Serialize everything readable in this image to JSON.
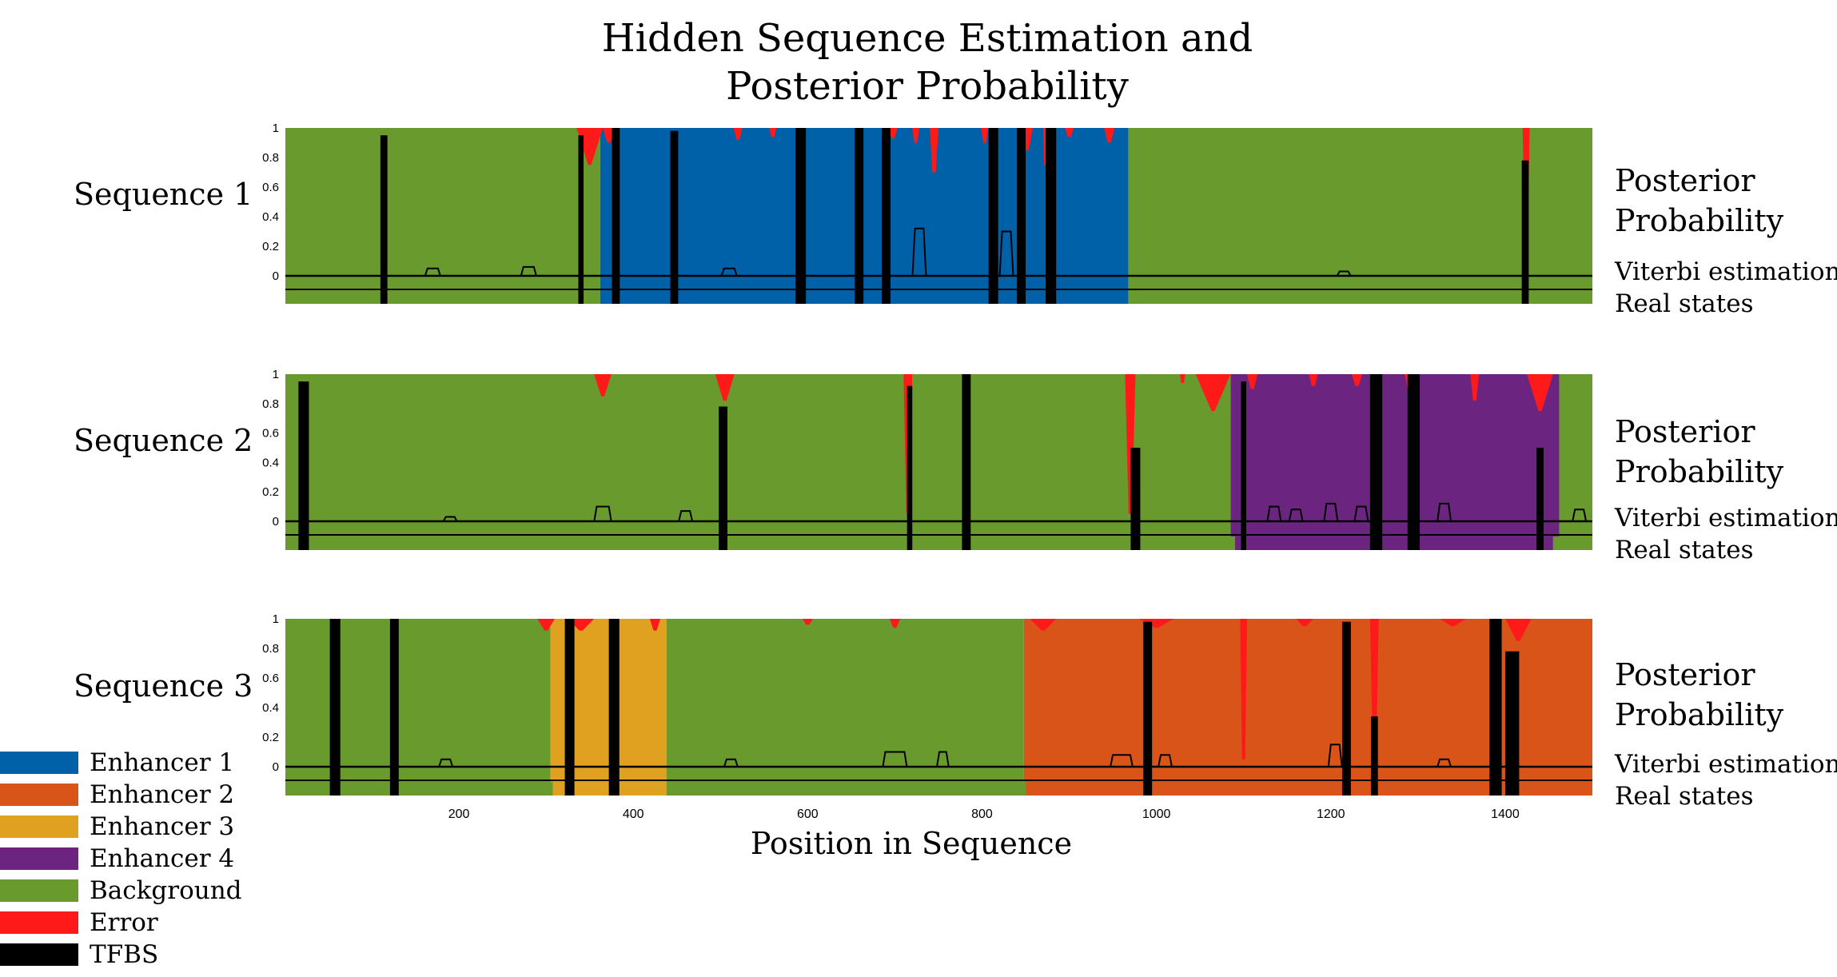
{
  "chart_data": {
    "type": "area",
    "title_line1": "Hidden Sequence Estimation and",
    "title_line2": "Posterior Probability",
    "xlabel": "Position in Sequence",
    "xlim": [
      1,
      1500
    ],
    "ylim": [
      0,
      1
    ],
    "x_ticks": [
      200,
      400,
      600,
      800,
      1000,
      1200,
      1400
    ],
    "y_ticks": [
      "0",
      "0.2",
      "0.4",
      "0.6",
      "0.8",
      "1"
    ],
    "side_labels": {
      "posterior_line1": "Posterior",
      "posterior_line2": "Probability",
      "viterbi": "Viterbi estimation",
      "real": "Real states"
    },
    "colors": {
      "enhancer1": "#0060a8",
      "enhancer2": "#d95419",
      "enhancer3": "#e0a020",
      "enhancer4": "#6b2580",
      "background": "#689a2d",
      "error": "#ff1a1a",
      "tfbs": "#000000"
    },
    "legend": [
      {
        "label": "Enhancer 1",
        "color": "#0060a8"
      },
      {
        "label": "Enhancer 2",
        "color": "#d95419"
      },
      {
        "label": "Enhancer 3",
        "color": "#e0a020"
      },
      {
        "label": "Enhancer 4",
        "color": "#6b2580"
      },
      {
        "label": "Background",
        "color": "#689a2d"
      },
      {
        "label": "Error",
        "color": "#ff1a1a"
      },
      {
        "label": "TFBS",
        "color": "#000000"
      }
    ],
    "sequences": [
      {
        "name": "Sequence 1",
        "posterior_regions": [
          {
            "start": 1,
            "end": 362,
            "state": "background"
          },
          {
            "start": 362,
            "end": 968,
            "state": "enhancer1"
          },
          {
            "start": 968,
            "end": 1500,
            "state": "background"
          }
        ],
        "error_dips": [
          {
            "x": 350,
            "w": 30,
            "depth": 0.25
          },
          {
            "x": 372,
            "w": 14,
            "depth": 0.1
          },
          {
            "x": 520,
            "w": 10,
            "depth": 0.08
          },
          {
            "x": 560,
            "w": 8,
            "depth": 0.06
          },
          {
            "x": 698,
            "w": 10,
            "depth": 0.07
          },
          {
            "x": 724,
            "w": 8,
            "depth": 0.1
          },
          {
            "x": 745,
            "w": 10,
            "depth": 0.3
          },
          {
            "x": 803,
            "w": 8,
            "depth": 0.1
          },
          {
            "x": 852,
            "w": 12,
            "depth": 0.15
          },
          {
            "x": 873,
            "w": 6,
            "depth": 0.25
          },
          {
            "x": 900,
            "w": 10,
            "depth": 0.06
          },
          {
            "x": 946,
            "w": 12,
            "depth": 0.1
          },
          {
            "x": 1424,
            "w": 8,
            "depth": 0.8
          }
        ],
        "tfbs": [
          {
            "x": 114,
            "w": 8,
            "h": 0.95
          },
          {
            "x": 340,
            "w": 6,
            "h": 0.95
          },
          {
            "x": 380,
            "w": 9,
            "h": 1.0
          },
          {
            "x": 447,
            "w": 9,
            "h": 0.98
          },
          {
            "x": 592,
            "w": 12,
            "h": 1.0
          },
          {
            "x": 659,
            "w": 10,
            "h": 1.0
          },
          {
            "x": 690,
            "w": 10,
            "h": 1.0
          },
          {
            "x": 813,
            "w": 11,
            "h": 1.0
          },
          {
            "x": 845,
            "w": 10,
            "h": 1.0
          },
          {
            "x": 879,
            "w": 12,
            "h": 1.0
          },
          {
            "x": 1423,
            "w": 8,
            "h": 0.78
          }
        ],
        "tfbs_bumps": [
          {
            "x": 170,
            "w": 12,
            "h": 0.05
          },
          {
            "x": 280,
            "w": 12,
            "h": 0.06
          },
          {
            "x": 510,
            "w": 12,
            "h": 0.05
          },
          {
            "x": 728,
            "w": 10,
            "h": 0.32
          },
          {
            "x": 828,
            "w": 10,
            "h": 0.3
          },
          {
            "x": 1215,
            "w": 10,
            "h": 0.03
          }
        ],
        "real_states": [
          {
            "start": 1,
            "end": 362,
            "state": "background"
          },
          {
            "start": 362,
            "end": 968,
            "state": "enhancer1"
          },
          {
            "start": 968,
            "end": 1500,
            "state": "background"
          }
        ]
      },
      {
        "name": "Sequence 2",
        "posterior_regions": [
          {
            "start": 1,
            "end": 1085,
            "state": "background"
          },
          {
            "start": 1085,
            "end": 1462,
            "state": "enhancer4"
          },
          {
            "start": 1462,
            "end": 1500,
            "state": "background"
          }
        ],
        "error_dips": [
          {
            "x": 365,
            "w": 20,
            "depth": 0.15
          },
          {
            "x": 505,
            "w": 22,
            "depth": 0.18
          },
          {
            "x": 715,
            "w": 10,
            "depth": 0.95
          },
          {
            "x": 970,
            "w": 12,
            "depth": 0.95
          },
          {
            "x": 1030,
            "w": 6,
            "depth": 0.06
          },
          {
            "x": 1065,
            "w": 40,
            "depth": 0.25
          },
          {
            "x": 1110,
            "w": 12,
            "depth": 0.1
          },
          {
            "x": 1180,
            "w": 10,
            "depth": 0.08
          },
          {
            "x": 1230,
            "w": 12,
            "depth": 0.08
          },
          {
            "x": 1290,
            "w": 10,
            "depth": 0.1
          },
          {
            "x": 1365,
            "w": 10,
            "depth": 0.18
          },
          {
            "x": 1440,
            "w": 30,
            "depth": 0.25
          }
        ],
        "tfbs": [
          {
            "x": 22,
            "w": 12,
            "h": 0.95
          },
          {
            "x": 503,
            "w": 10,
            "h": 0.78
          },
          {
            "x": 717,
            "w": 6,
            "h": 0.92
          },
          {
            "x": 782,
            "w": 10,
            "h": 1.0
          },
          {
            "x": 976,
            "w": 11,
            "h": 0.5
          },
          {
            "x": 1100,
            "w": 6,
            "h": 0.95
          },
          {
            "x": 1252,
            "w": 14,
            "h": 1.0
          },
          {
            "x": 1295,
            "w": 14,
            "h": 1.0
          },
          {
            "x": 1440,
            "w": 8,
            "h": 0.5
          }
        ],
        "tfbs_bumps": [
          {
            "x": 190,
            "w": 10,
            "h": 0.03
          },
          {
            "x": 365,
            "w": 14,
            "h": 0.1
          },
          {
            "x": 460,
            "w": 10,
            "h": 0.07
          },
          {
            "x": 1135,
            "w": 10,
            "h": 0.1
          },
          {
            "x": 1160,
            "w": 10,
            "h": 0.08
          },
          {
            "x": 1200,
            "w": 10,
            "h": 0.12
          },
          {
            "x": 1235,
            "w": 10,
            "h": 0.1
          },
          {
            "x": 1330,
            "w": 10,
            "h": 0.12
          },
          {
            "x": 1485,
            "w": 10,
            "h": 0.08
          }
        ],
        "real_states": [
          {
            "start": 1,
            "end": 1090,
            "state": "background"
          },
          {
            "start": 1090,
            "end": 1455,
            "state": "enhancer4"
          },
          {
            "start": 1455,
            "end": 1500,
            "state": "background"
          }
        ]
      },
      {
        "name": "Sequence 3",
        "posterior_regions": [
          {
            "start": 1,
            "end": 305,
            "state": "background"
          },
          {
            "start": 305,
            "end": 438,
            "state": "enhancer3"
          },
          {
            "start": 438,
            "end": 848,
            "state": "background"
          },
          {
            "start": 848,
            "end": 1500,
            "state": "enhancer2"
          }
        ],
        "error_dips": [
          {
            "x": 300,
            "w": 20,
            "depth": 0.08
          },
          {
            "x": 340,
            "w": 30,
            "depth": 0.08
          },
          {
            "x": 425,
            "w": 12,
            "depth": 0.08
          },
          {
            "x": 600,
            "w": 12,
            "depth": 0.04
          },
          {
            "x": 700,
            "w": 12,
            "depth": 0.06
          },
          {
            "x": 870,
            "w": 30,
            "depth": 0.08
          },
          {
            "x": 1000,
            "w": 40,
            "depth": 0.06
          },
          {
            "x": 1100,
            "w": 8,
            "depth": 0.95
          },
          {
            "x": 1170,
            "w": 20,
            "depth": 0.05
          },
          {
            "x": 1250,
            "w": 10,
            "depth": 0.95
          },
          {
            "x": 1340,
            "w": 30,
            "depth": 0.05
          },
          {
            "x": 1415,
            "w": 30,
            "depth": 0.15
          }
        ],
        "tfbs": [
          {
            "x": 58,
            "w": 12,
            "h": 1.0
          },
          {
            "x": 126,
            "w": 10,
            "h": 1.0
          },
          {
            "x": 327,
            "w": 11,
            "h": 1.0
          },
          {
            "x": 378,
            "w": 12,
            "h": 1.0
          },
          {
            "x": 990,
            "w": 10,
            "h": 0.98
          },
          {
            "x": 1218,
            "w": 10,
            "h": 0.98
          },
          {
            "x": 1250,
            "w": 8,
            "h": 0.34
          },
          {
            "x": 1389,
            "w": 14,
            "h": 1.0
          },
          {
            "x": 1408,
            "w": 16,
            "h": 0.78
          }
        ],
        "tfbs_bumps": [
          {
            "x": 185,
            "w": 10,
            "h": 0.05
          },
          {
            "x": 512,
            "w": 10,
            "h": 0.05
          },
          {
            "x": 700,
            "w": 22,
            "h": 0.1
          },
          {
            "x": 755,
            "w": 8,
            "h": 0.1
          },
          {
            "x": 960,
            "w": 20,
            "h": 0.08
          },
          {
            "x": 1010,
            "w": 10,
            "h": 0.08
          },
          {
            "x": 1205,
            "w": 10,
            "h": 0.15
          },
          {
            "x": 1330,
            "w": 10,
            "h": 0.05
          }
        ],
        "real_states": [
          {
            "start": 1,
            "end": 308,
            "state": "background"
          },
          {
            "start": 308,
            "end": 438,
            "state": "enhancer3"
          },
          {
            "start": 438,
            "end": 850,
            "state": "background"
          },
          {
            "start": 850,
            "end": 1500,
            "state": "enhancer2"
          }
        ]
      }
    ]
  }
}
